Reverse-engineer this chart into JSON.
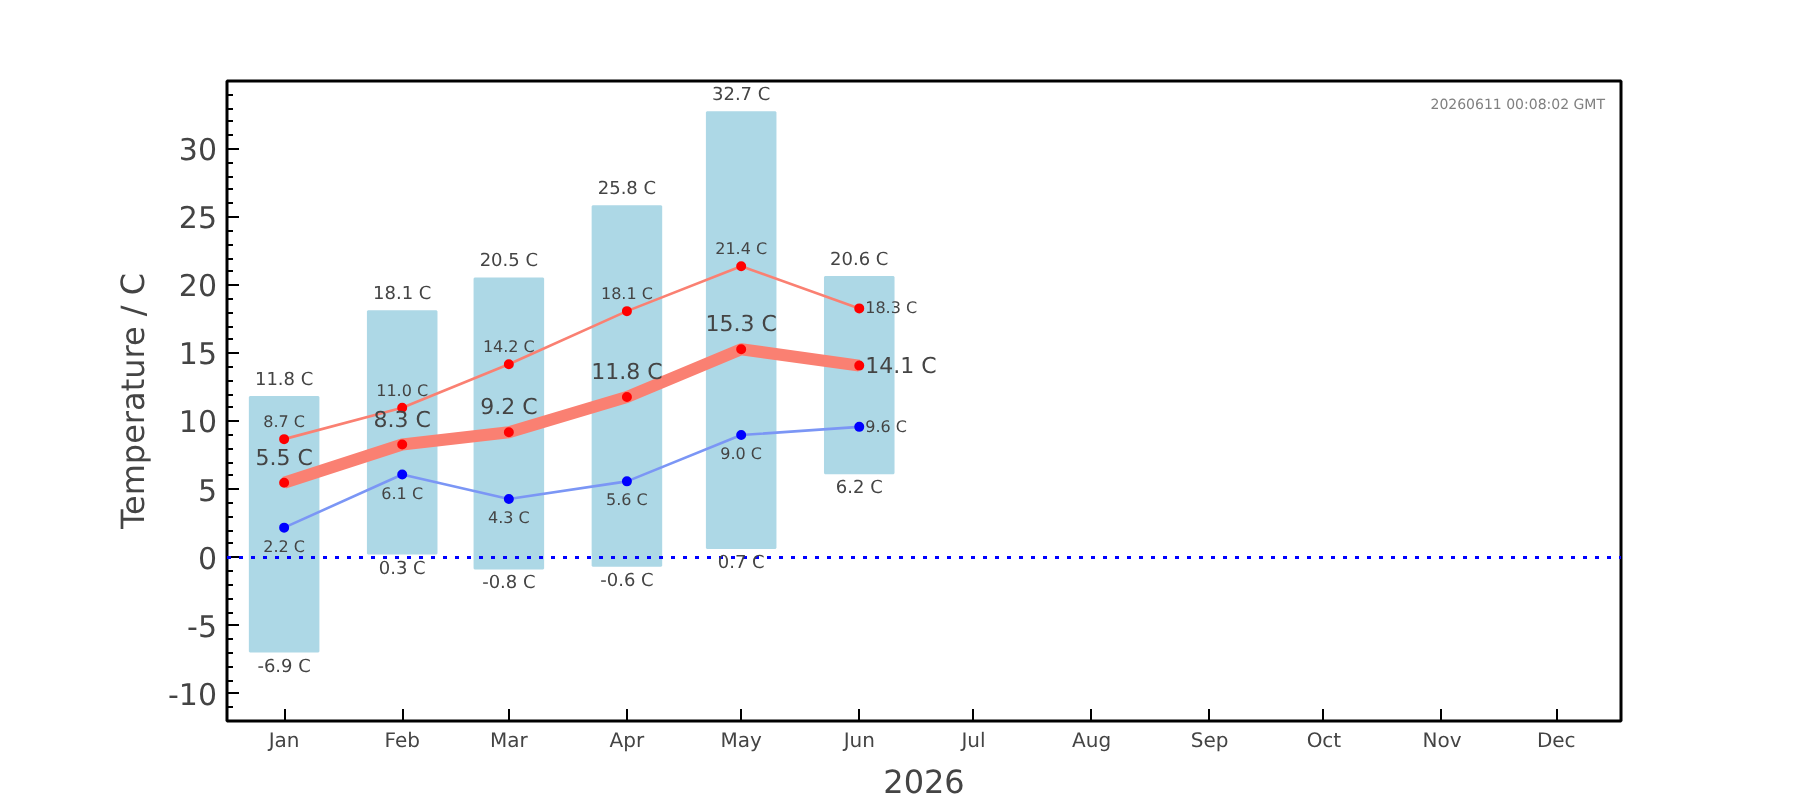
{
  "chart_data": {
    "type": "bar",
    "xlabel": "2026",
    "ylabel": "Temperature / C",
    "x": [
      "2026-01",
      "2026-02",
      "2026-03",
      "2026-04",
      "2026-05",
      "2026-06"
    ],
    "xlim": [
      "2025-12-17",
      "2026-12-18"
    ],
    "xticks": [
      {
        "value": "2026-01",
        "label": "Jan"
      },
      {
        "value": "2026-02",
        "label": "Feb"
      },
      {
        "value": "2026-03",
        "label": "Mar"
      },
      {
        "value": "2026-04",
        "label": "Apr"
      },
      {
        "value": "2026-05",
        "label": "May"
      },
      {
        "value": "2026-06",
        "label": "Jun"
      },
      {
        "value": "2026-07",
        "label": "Jul"
      },
      {
        "value": "2026-08",
        "label": "Aug"
      },
      {
        "value": "2026-09",
        "label": "Sep"
      },
      {
        "value": "2026-10",
        "label": "Oct"
      },
      {
        "value": "2026-11",
        "label": "Nov"
      },
      {
        "value": "2026-12",
        "label": "Dec"
      }
    ],
    "ylim": [
      -12,
      35
    ],
    "yticks": [
      -10,
      -5,
      0,
      5,
      10,
      15,
      20,
      25,
      30
    ],
    "grid": false,
    "marker": "circle",
    "series": [
      {
        "color": "#add8e6",
        "base": [
          -6.9,
          0.3,
          -0.8,
          -0.6,
          0.7,
          6.2
        ],
        "values": [
          18.7,
          17.8,
          21.3,
          26.4,
          32.0,
          14.4
        ]
      },
      {
        "type": "line",
        "color": "#fa8072",
        "values": [
          8.7,
          11.0,
          14.2,
          18.1,
          21.4,
          18.3
        ],
        "value_labels": [
          "8.7 C",
          "11.0 C",
          "14.2 C",
          "18.1 C",
          "21.4 C",
          "18.3 C"
        ]
      },
      {
        "type": "line",
        "color": "#fa8072",
        "values": [
          5.5,
          8.3,
          9.2,
          11.8,
          15.3,
          14.1
        ],
        "value_labels": [
          "5.5 C",
          "8.3 C",
          "9.2 C",
          "11.8 C",
          "15.3 C",
          "14.1 C"
        ]
      },
      {
        "type": "line",
        "color": "#7b96f5",
        "values": [
          2.2,
          6.1,
          4.3,
          5.6,
          9.0,
          9.6
        ],
        "value_labels": [
          "2.2 C",
          "6.1 C",
          "4.3 C",
          "5.6 C",
          "9.0 C",
          "9.6 C"
        ]
      }
    ],
    "ref_lines": [
      {
        "axis": "y",
        "value": 0,
        "label": null,
        "color": "#0000ff",
        "line_style": "dotted"
      }
    ],
    "annotations": [
      {
        "text": "11.8 C",
        "x": "2026-01",
        "y": 11.8
      },
      {
        "text": "-6.9 C",
        "x": "2026-01",
        "y": -6.9
      },
      {
        "text": "18.1 C",
        "x": "2026-02",
        "y": 18.1
      },
      {
        "text": "0.3 C",
        "x": "2026-02",
        "y": 0.3
      },
      {
        "text": "20.5 C",
        "x": "2026-03",
        "y": 20.5
      },
      {
        "text": "-0.8 C",
        "x": "2026-03",
        "y": -0.8
      },
      {
        "text": "25.8 C",
        "x": "2026-04",
        "y": 25.8
      },
      {
        "text": "-0.6 C",
        "x": "2026-04",
        "y": -0.6
      },
      {
        "text": "32.7 C",
        "x": "2026-05",
        "y": 32.7
      },
      {
        "text": "0.7 C",
        "x": "2026-05",
        "y": 0.7
      },
      {
        "text": "20.6 C",
        "x": "2026-06",
        "y": 20.6
      },
      {
        "text": "6.2 C",
        "x": "2026-06",
        "y": 6.2
      },
      "20260611 00:08:02 GMT"
    ]
  }
}
